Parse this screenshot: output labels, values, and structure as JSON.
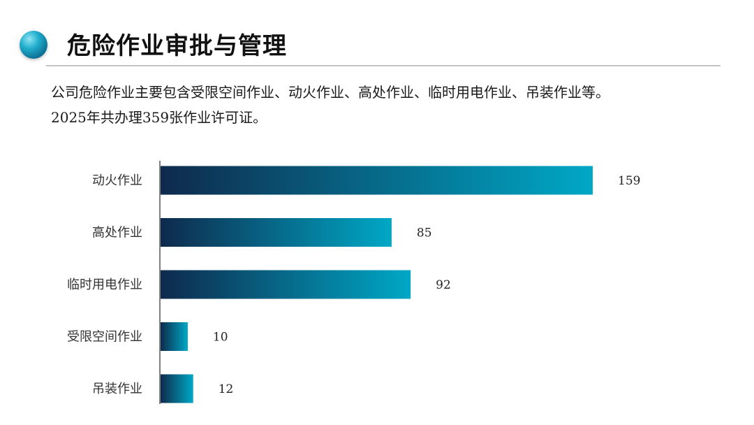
{
  "header": {
    "title": "危险作业审批与管理"
  },
  "description": {
    "line1": "公司危险作业主要包含受限空间作业、动火作业、高处作业、临时用电作业、吊装作业等。",
    "line2": "2025年共办理359张作业许可证。"
  },
  "chart_data": {
    "type": "bar",
    "orientation": "horizontal",
    "categories": [
      "动火作业",
      "高处作业",
      "临时用电作业",
      "受限空间作业",
      "吊装作业"
    ],
    "values": [
      159,
      85,
      92,
      10,
      12
    ],
    "data_labels": [
      "159",
      "85",
      "92",
      "10",
      "12"
    ],
    "title": "",
    "xlabel": "",
    "ylabel": "",
    "xlim": [
      0,
      160
    ],
    "grid": false,
    "legend": "none",
    "bar_gradient": [
      "#0e2a4c",
      "#00a8c6"
    ]
  }
}
